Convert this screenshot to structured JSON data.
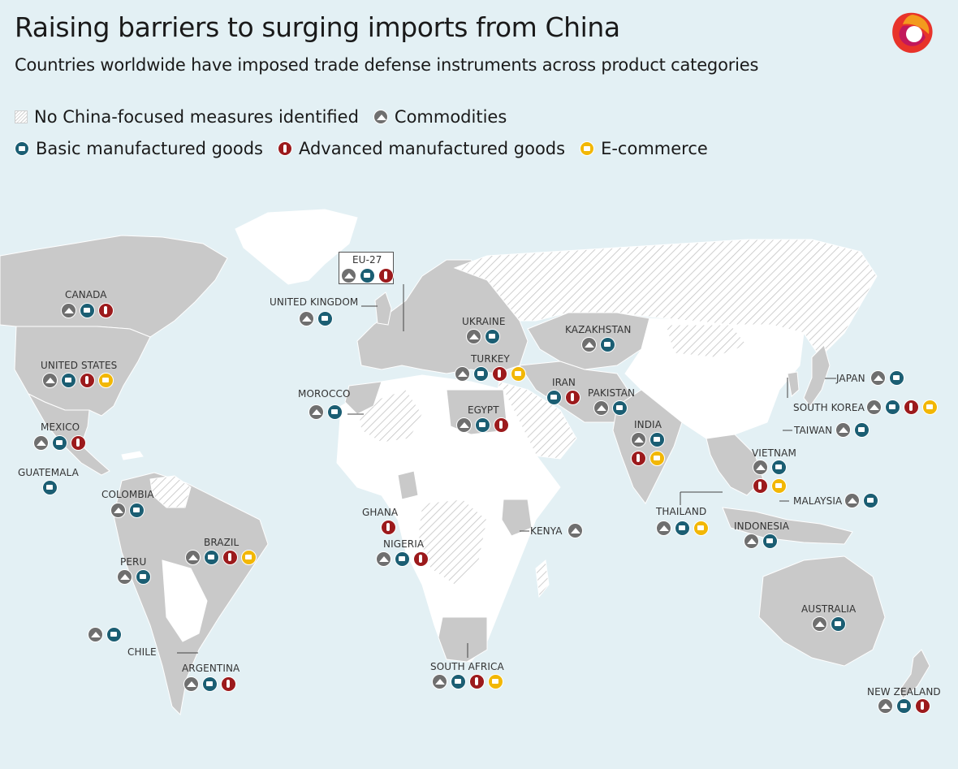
{
  "title": "Raising barriers to surging imports from China",
  "subtitle": "Countries worldwide have imposed trade defense instruments across product categories",
  "legend": {
    "none": "No China-focused measures identified",
    "commodities": "Commodities",
    "basic": "Basic manufactured goods",
    "advanced": "Advanced manufactured goods",
    "ecommerce": "E-commerce"
  },
  "colors": {
    "commodities": "#6f6f6f",
    "basic": "#1b5e73",
    "advanced": "#9c1a1c",
    "ecommerce": "#f2b705",
    "land": "#c9c9c9",
    "ocean": "#e3f0f4"
  },
  "countries": [
    {
      "name": "CANADA",
      "measures": [
        "commodities",
        "basic",
        "advanced"
      ]
    },
    {
      "name": "UNITED STATES",
      "measures": [
        "commodities",
        "basic",
        "advanced",
        "ecommerce"
      ]
    },
    {
      "name": "MEXICO",
      "measures": [
        "commodities",
        "basic",
        "advanced"
      ]
    },
    {
      "name": "GUATEMALA",
      "measures": [
        "basic"
      ]
    },
    {
      "name": "COLOMBIA",
      "measures": [
        "commodities",
        "basic"
      ]
    },
    {
      "name": "BRAZIL",
      "measures": [
        "commodities",
        "basic",
        "advanced",
        "ecommerce"
      ]
    },
    {
      "name": "PERU",
      "measures": [
        "commodities",
        "basic"
      ]
    },
    {
      "name": "CHILE",
      "measures": [
        "commodities",
        "basic"
      ]
    },
    {
      "name": "ARGENTINA",
      "measures": [
        "commodities",
        "basic",
        "advanced"
      ]
    },
    {
      "name": "EU-27",
      "measures": [
        "commodities",
        "basic",
        "advanced"
      ]
    },
    {
      "name": "UNITED KINGDOM",
      "measures": [
        "commodities",
        "basic"
      ]
    },
    {
      "name": "MOROCCO",
      "measures": [
        "commodities",
        "basic"
      ]
    },
    {
      "name": "UKRAINE",
      "measures": [
        "commodities",
        "basic"
      ]
    },
    {
      "name": "TURKEY",
      "measures": [
        "commodities",
        "basic",
        "advanced",
        "ecommerce"
      ]
    },
    {
      "name": "EGYPT",
      "measures": [
        "commodities",
        "basic",
        "advanced"
      ]
    },
    {
      "name": "GHANA",
      "measures": [
        "advanced"
      ]
    },
    {
      "name": "NIGERIA",
      "measures": [
        "commodities",
        "basic",
        "advanced"
      ]
    },
    {
      "name": "KENYA",
      "measures": [
        "commodities"
      ]
    },
    {
      "name": "SOUTH AFRICA",
      "measures": [
        "commodities",
        "basic",
        "advanced",
        "ecommerce"
      ]
    },
    {
      "name": "KAZAKHSTAN",
      "measures": [
        "commodities",
        "basic"
      ]
    },
    {
      "name": "IRAN",
      "measures": [
        "basic",
        "advanced"
      ]
    },
    {
      "name": "PAKISTAN",
      "measures": [
        "commodities",
        "basic"
      ]
    },
    {
      "name": "INDIA",
      "measures": [
        "commodities",
        "basic",
        "advanced",
        "ecommerce"
      ]
    },
    {
      "name": "JAPAN",
      "measures": [
        "commodities",
        "basic"
      ]
    },
    {
      "name": "SOUTH KOREA",
      "measures": [
        "commodities",
        "basic",
        "advanced",
        "ecommerce"
      ]
    },
    {
      "name": "TAIWAN",
      "measures": [
        "commodities",
        "basic"
      ]
    },
    {
      "name": "VIETNAM",
      "measures": [
        "commodities",
        "basic",
        "advanced",
        "ecommerce"
      ]
    },
    {
      "name": "THAILAND",
      "measures": [
        "commodities",
        "basic",
        "ecommerce"
      ]
    },
    {
      "name": "MALAYSIA",
      "measures": [
        "commodities",
        "basic"
      ]
    },
    {
      "name": "INDONESIA",
      "measures": [
        "commodities",
        "basic"
      ]
    },
    {
      "name": "AUSTRALIA",
      "measures": [
        "commodities",
        "basic"
      ]
    },
    {
      "name": "NEW ZEALAND",
      "measures": [
        "commodities",
        "basic",
        "advanced"
      ]
    }
  ]
}
